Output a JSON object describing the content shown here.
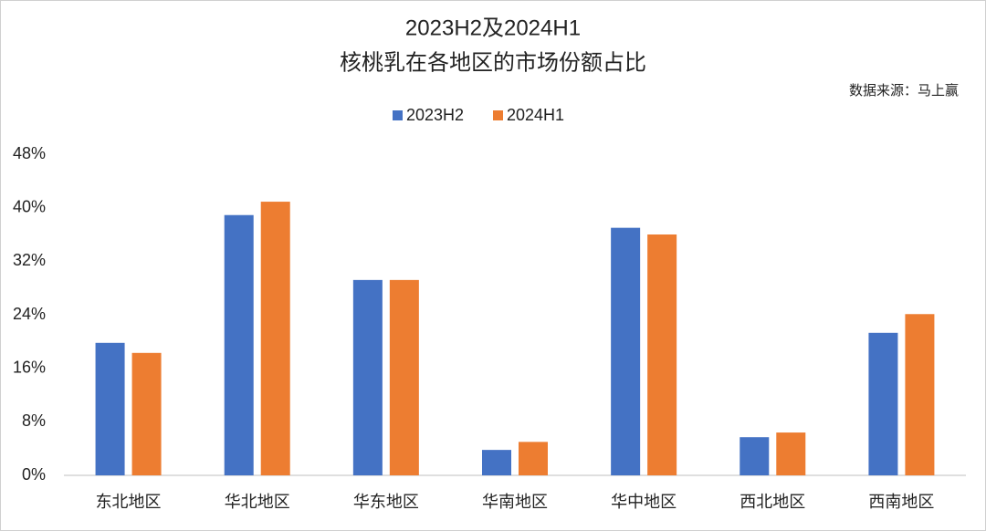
{
  "chart_data": {
    "type": "bar",
    "title": "2023H2及2024H1",
    "subtitle": "核桃乳在各地区的市场份额占比",
    "source": "数据来源：马上赢",
    "categories": [
      "东北地区",
      "华北地区",
      "华东地区",
      "华南地区",
      "华中地区",
      "西北地区",
      "西南地区"
    ],
    "series": [
      {
        "name": "2023H2",
        "color": "#4472c4",
        "values": [
          19.8,
          38.9,
          29.2,
          3.8,
          37.0,
          5.7,
          21.3
        ]
      },
      {
        "name": "2024H1",
        "color": "#ed7d31",
        "values": [
          18.3,
          40.9,
          29.2,
          5.0,
          36.0,
          6.4,
          24.1
        ]
      }
    ],
    "ylim": [
      0,
      48
    ],
    "yticks": [
      {
        "value": 0,
        "label": "0%"
      },
      {
        "value": 8,
        "label": "8%"
      },
      {
        "value": 16,
        "label": "16%"
      },
      {
        "value": 24,
        "label": "24%"
      },
      {
        "value": 32,
        "label": "32%"
      },
      {
        "value": 40,
        "label": "40%"
      },
      {
        "value": 48,
        "label": "48%"
      }
    ],
    "grid": false,
    "legend": "top"
  }
}
